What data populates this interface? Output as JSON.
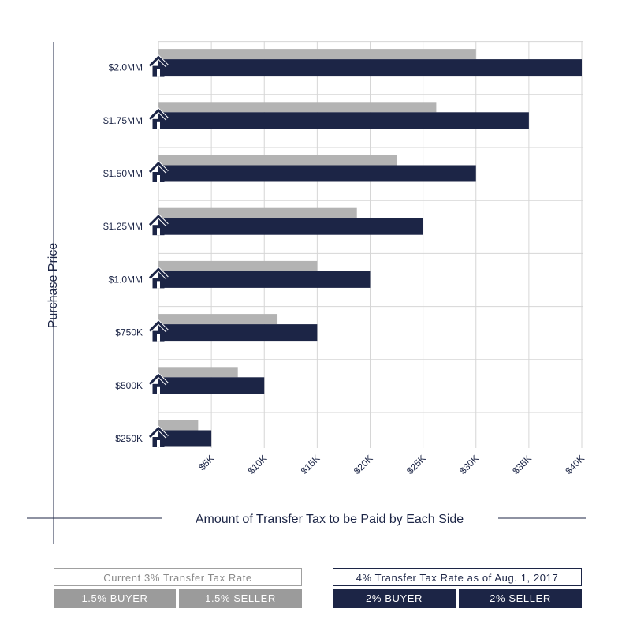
{
  "chart_data": {
    "type": "bar",
    "orientation": "horizontal",
    "categories": [
      "$250K",
      "$500K",
      "$750K",
      "$1.0MM",
      "$1.25MM",
      "$1.50MM",
      "$1.75MM",
      "$2.0MM"
    ],
    "series": [
      {
        "values": [
          3750,
          7500,
          11250,
          15000,
          18750,
          22500,
          26250,
          30000
        ],
        "color": "#b3b3b3"
      },
      {
        "values": [
          5000,
          10000,
          15000,
          20000,
          25000,
          30000,
          35000,
          40000
        ],
        "color": "#1c2546"
      }
    ],
    "xlabel": "Amount of Transfer Tax to be Paid by Each Side",
    "ylabel": "Purchase Price",
    "x_ticks": [
      "$5K",
      "$10K",
      "$15K",
      "$20K",
      "$25K",
      "$30K",
      "$35K",
      "$40K"
    ],
    "xlim": [
      0,
      40000
    ],
    "grid": true,
    "icon": "house-icon"
  },
  "legend": {
    "current": {
      "title": "Current 3% Transfer Tax Rate",
      "buyer": "1.5% BUYER",
      "seller": "1.5% SELLER",
      "color": "#9b9b9b"
    },
    "new": {
      "title": "4% Transfer Tax Rate as of Aug. 1, 2017",
      "buyer": "2% BUYER",
      "seller": "2% SELLER",
      "color": "#1c2546"
    }
  }
}
